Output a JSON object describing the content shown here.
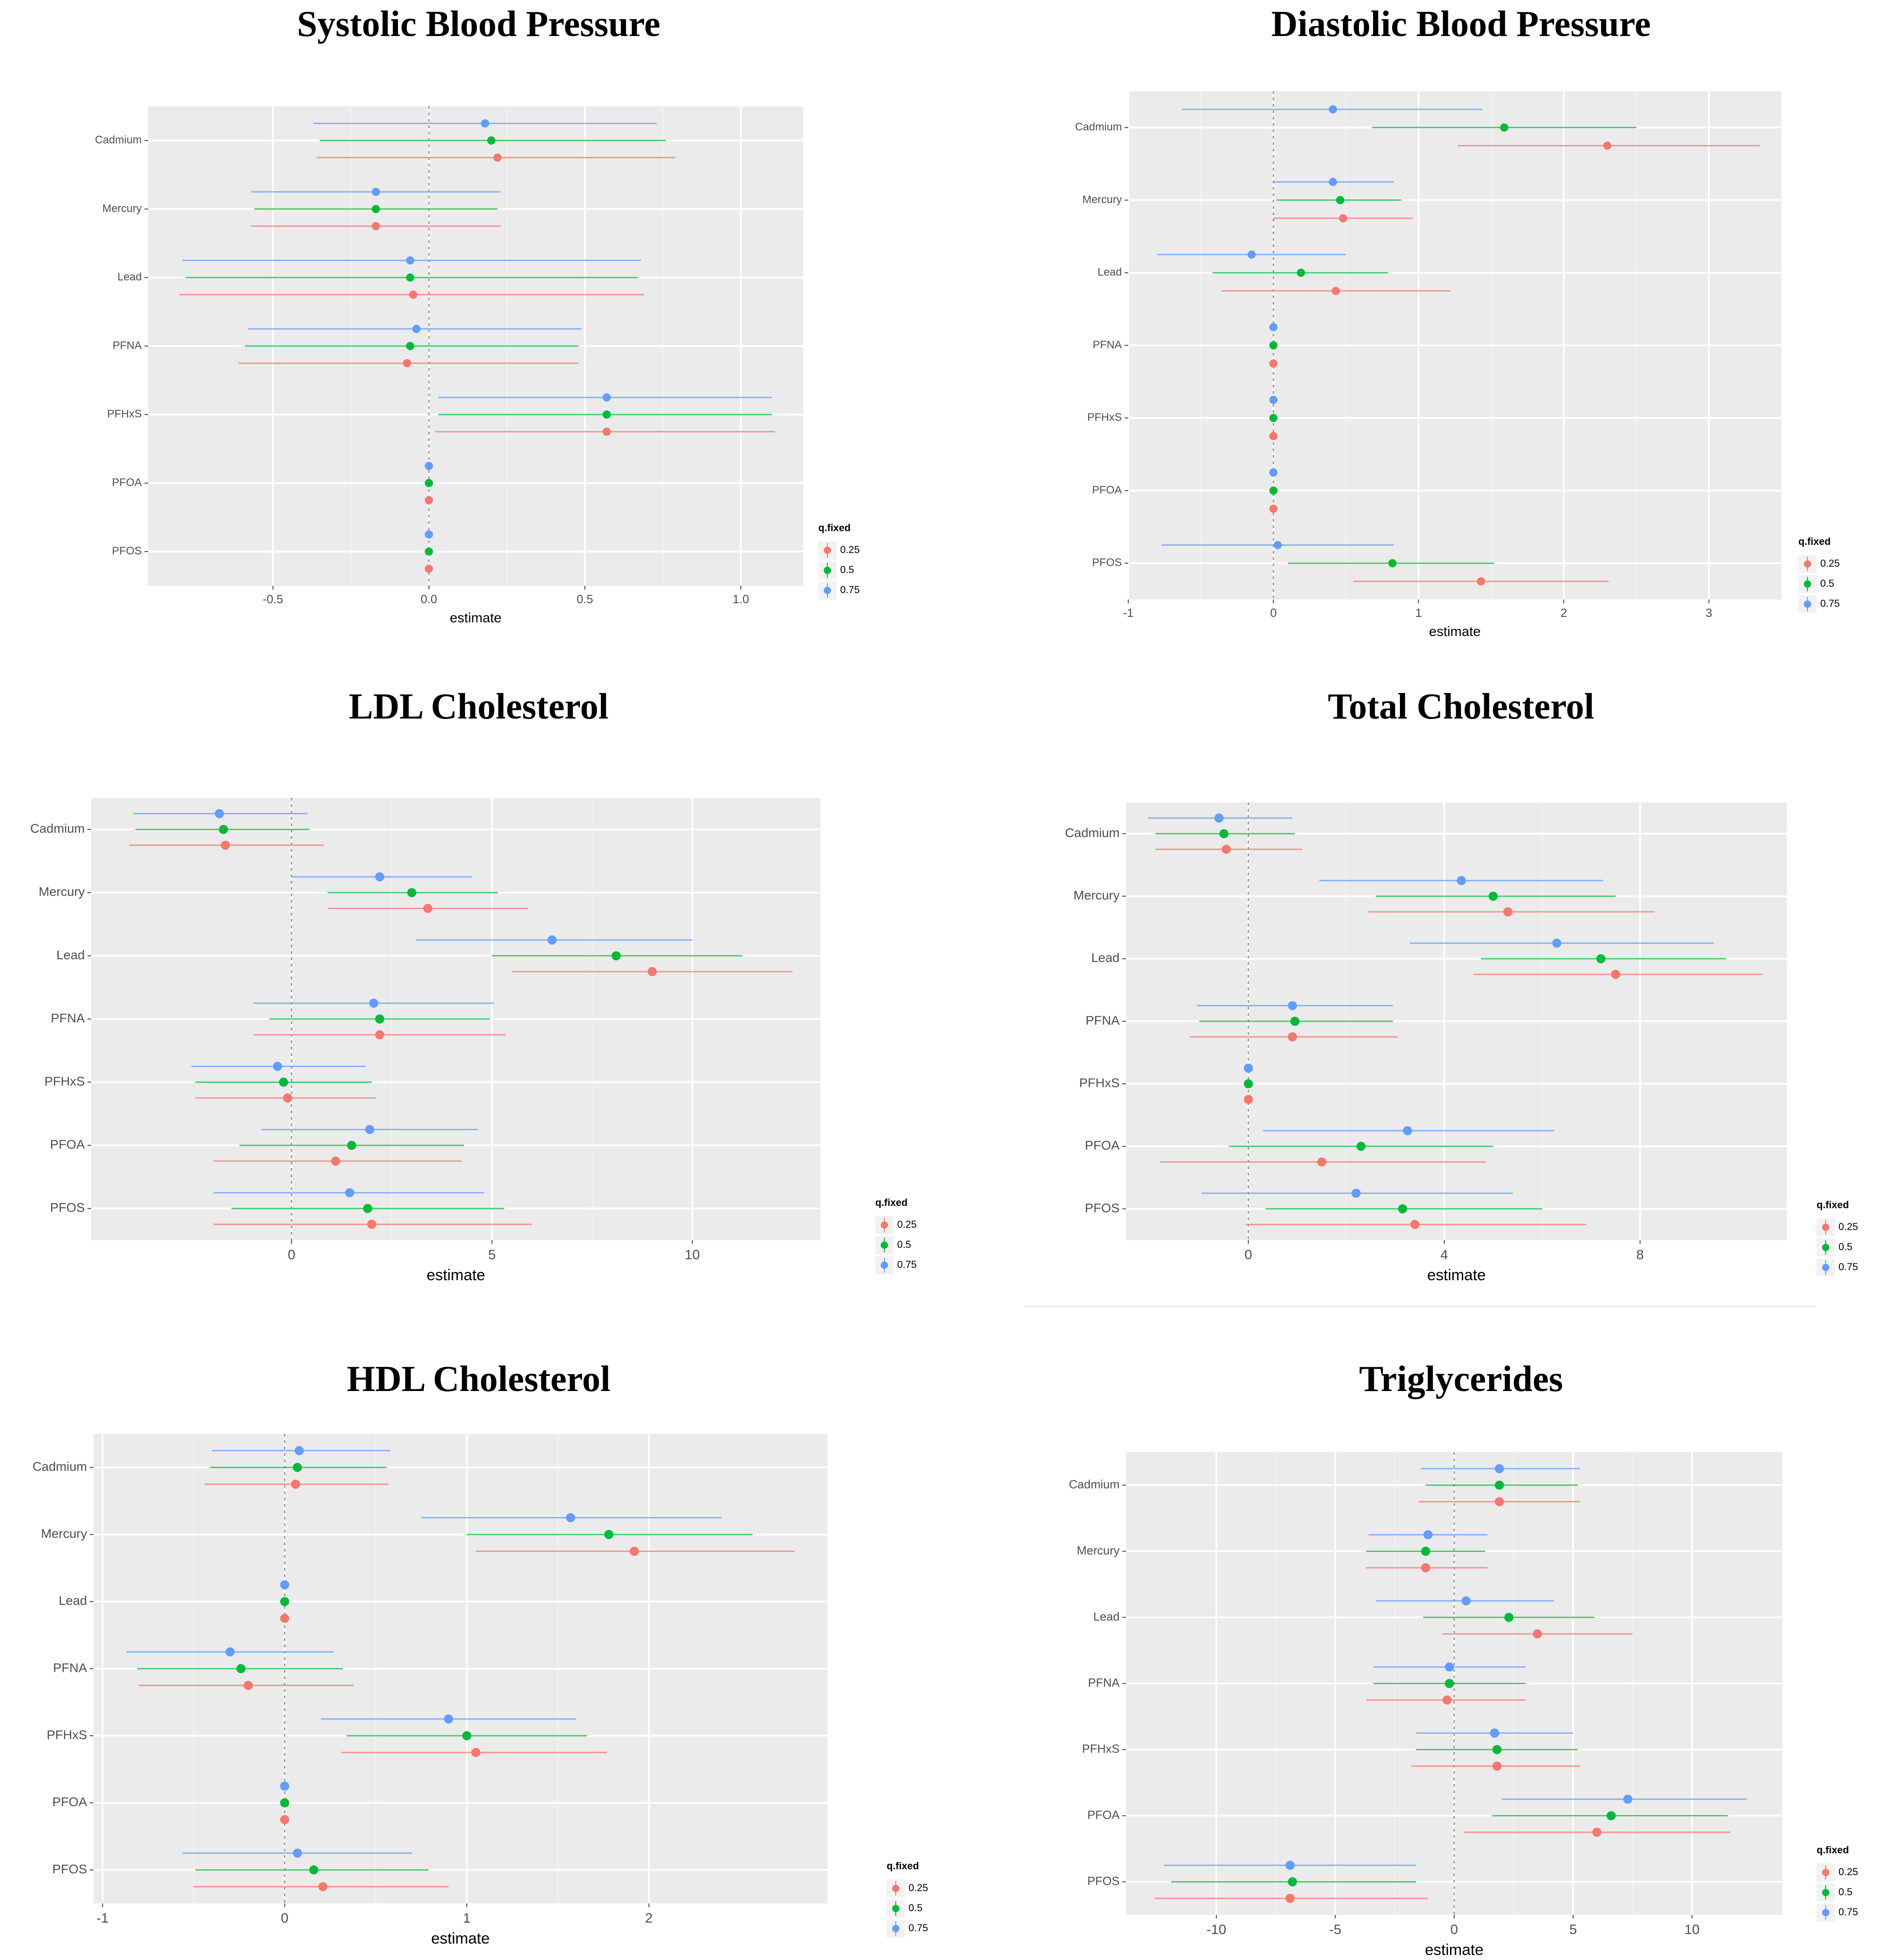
{
  "chart_data": [
    {
      "type": "forest",
      "title": "Systolic Blood Pressure",
      "xlabel": "estimate",
      "ylabel": "",
      "categories": [
        "Cadmium",
        "Mercury",
        "Lead",
        "PFNA",
        "PFHxS",
        "PFOA",
        "PFOS"
      ],
      "xlim": [
        -0.9,
        1.2
      ],
      "xticks": [
        -0.5,
        0.0,
        0.5,
        1.0
      ],
      "xtick_labels": [
        "-0.5",
        "0.0",
        "0.5",
        "1.0"
      ],
      "legend": {
        "title": "q.fixed",
        "labels": [
          "0.25",
          "0.5",
          "0.75"
        ],
        "position": "right-bottom"
      },
      "grid": true,
      "series": [
        {
          "name": "0.25",
          "color": "#F8766D",
          "est": [
            0.22,
            -0.17,
            -0.05,
            -0.07,
            0.57,
            0.0,
            0.0
          ],
          "lo": [
            -0.36,
            -0.57,
            -0.8,
            -0.61,
            0.02,
            0.0,
            0.0
          ],
          "hi": [
            0.79,
            0.23,
            0.69,
            0.48,
            1.11,
            0.0,
            0.0
          ]
        },
        {
          "name": "0.5",
          "color": "#00BA38",
          "est": [
            0.2,
            -0.17,
            -0.06,
            -0.06,
            0.57,
            0.0,
            0.0
          ],
          "lo": [
            -0.35,
            -0.56,
            -0.78,
            -0.59,
            0.03,
            0.0,
            0.0
          ],
          "hi": [
            0.76,
            0.22,
            0.67,
            0.48,
            1.1,
            0.0,
            0.0
          ]
        },
        {
          "name": "0.75",
          "color": "#619CFF",
          "est": [
            0.18,
            -0.17,
            -0.06,
            -0.04,
            0.57,
            0.0,
            0.0
          ],
          "lo": [
            -0.37,
            -0.57,
            -0.79,
            -0.58,
            0.03,
            0.0,
            0.0
          ],
          "hi": [
            0.73,
            0.23,
            0.68,
            0.49,
            1.1,
            0.0,
            0.0
          ]
        }
      ]
    },
    {
      "type": "forest",
      "title": "Diastolic Blood Pressure",
      "xlabel": "estimate",
      "ylabel": "",
      "categories": [
        "Cadmium",
        "Mercury",
        "Lead",
        "PFNA",
        "PFHxS",
        "PFOA",
        "PFOS"
      ],
      "xlim": [
        -1.0,
        3.5
      ],
      "xticks": [
        -1,
        0,
        1,
        2,
        3
      ],
      "xtick_labels": [
        "-1",
        "0",
        "1",
        "2",
        "3"
      ],
      "legend": {
        "title": "q.fixed",
        "labels": [
          "0.25",
          "0.5",
          "0.75"
        ],
        "position": "right-bottom"
      },
      "grid": true,
      "series": [
        {
          "name": "0.25",
          "color": "#F8766D",
          "est": [
            2.3,
            0.48,
            0.43,
            0.0,
            0.0,
            0.0,
            1.43
          ],
          "lo": [
            1.27,
            0.0,
            -0.36,
            0.0,
            0.0,
            0.0,
            0.55
          ],
          "hi": [
            3.35,
            0.96,
            1.22,
            0.0,
            0.0,
            0.0,
            2.31
          ]
        },
        {
          "name": "0.5",
          "color": "#00BA38",
          "est": [
            1.59,
            0.46,
            0.19,
            0.0,
            0.0,
            0.0,
            0.82
          ],
          "lo": [
            0.68,
            0.02,
            -0.42,
            0.0,
            0.0,
            0.0,
            0.1
          ],
          "hi": [
            2.5,
            0.88,
            0.79,
            0.0,
            0.0,
            0.0,
            1.52
          ]
        },
        {
          "name": "0.75",
          "color": "#619CFF",
          "est": [
            0.41,
            0.41,
            -0.15,
            0.0,
            0.0,
            0.0,
            0.03
          ],
          "lo": [
            -0.63,
            0.0,
            -0.8,
            0.0,
            0.0,
            0.0,
            -0.77
          ],
          "hi": [
            1.44,
            0.83,
            0.5,
            0.0,
            0.0,
            0.0,
            0.83
          ]
        }
      ]
    },
    {
      "type": "forest",
      "title": "LDL Cholesterol",
      "xlabel": "estimate",
      "ylabel": "",
      "categories": [
        "Cadmium",
        "Mercury",
        "Lead",
        "PFNA",
        "PFHxS",
        "PFOA",
        "PFOS"
      ],
      "xlim": [
        -5.0,
        13.2
      ],
      "xticks": [
        0,
        5,
        10
      ],
      "xtick_labels": [
        "0",
        "5",
        "10"
      ],
      "legend": {
        "title": "q.fixed",
        "labels": [
          "0.25",
          "0.5",
          "0.75"
        ],
        "position": "right-bottom"
      },
      "grid": true,
      "series": [
        {
          "name": "0.25",
          "color": "#F8766D",
          "est": [
            -1.65,
            3.4,
            9.0,
            2.2,
            -0.1,
            1.1,
            2.0
          ],
          "lo": [
            -4.05,
            0.9,
            5.5,
            -0.95,
            -2.4,
            -1.95,
            -1.95
          ],
          "hi": [
            0.8,
            5.9,
            12.5,
            5.35,
            2.1,
            4.25,
            6.0
          ]
        },
        {
          "name": "0.5",
          "color": "#00BA38",
          "est": [
            -1.7,
            3.0,
            8.1,
            2.2,
            -0.2,
            1.5,
            1.9
          ],
          "lo": [
            -3.9,
            0.9,
            5.0,
            -0.55,
            -2.4,
            -1.3,
            -1.5
          ],
          "hi": [
            0.45,
            5.15,
            11.25,
            4.95,
            2.0,
            4.3,
            5.3
          ]
        },
        {
          "name": "0.75",
          "color": "#619CFF",
          "est": [
            -1.8,
            2.2,
            6.5,
            2.05,
            -0.35,
            1.95,
            1.45
          ],
          "lo": [
            -3.95,
            0.0,
            3.1,
            -0.95,
            -2.5,
            -0.75,
            -1.95
          ],
          "hi": [
            0.4,
            4.5,
            10.0,
            5.05,
            1.85,
            4.65,
            4.8
          ]
        }
      ]
    },
    {
      "type": "forest",
      "title": "Total Cholesterol",
      "xlabel": "estimate",
      "ylabel": "",
      "categories": [
        "Cadmium",
        "Mercury",
        "Lead",
        "PFNA",
        "PFHxS",
        "PFOA",
        "PFOS"
      ],
      "xlim": [
        -2.5,
        11.0
      ],
      "xticks": [
        0,
        4,
        8
      ],
      "xtick_labels": [
        "0",
        "4",
        "8"
      ],
      "legend": {
        "title": "q.fixed",
        "labels": [
          "0.25",
          "0.5",
          "0.75"
        ],
        "position": "right-bottom"
      },
      "grid": true,
      "series": [
        {
          "name": "0.25",
          "color": "#F8766D",
          "est": [
            -0.45,
            5.3,
            7.5,
            0.9,
            0.0,
            1.5,
            3.4
          ],
          "lo": [
            -1.9,
            2.45,
            4.6,
            -1.2,
            0.0,
            -1.8,
            -0.05
          ],
          "hi": [
            1.1,
            8.3,
            10.5,
            3.05,
            0.0,
            4.85,
            6.9
          ]
        },
        {
          "name": "0.5",
          "color": "#00BA38",
          "est": [
            -0.5,
            5.0,
            7.2,
            0.95,
            0.0,
            2.3,
            3.15
          ],
          "lo": [
            -1.9,
            2.6,
            4.75,
            -1.0,
            0.0,
            -0.4,
            0.35
          ],
          "hi": [
            0.95,
            7.5,
            9.75,
            2.95,
            0.0,
            5.0,
            6.0
          ]
        },
        {
          "name": "0.75",
          "color": "#619CFF",
          "est": [
            -0.6,
            4.35,
            6.3,
            0.9,
            0.0,
            3.25,
            2.2
          ],
          "lo": [
            -2.05,
            1.45,
            3.3,
            -1.05,
            0.0,
            0.3,
            -0.95
          ],
          "hi": [
            0.9,
            7.25,
            9.5,
            2.95,
            0.0,
            6.25,
            5.4
          ]
        }
      ]
    },
    {
      "type": "forest",
      "title": "HDL Cholesterol",
      "xlabel": "estimate",
      "ylabel": "",
      "categories": [
        "Cadmium",
        "Mercury",
        "Lead",
        "PFNA",
        "PFHxS",
        "PFOA",
        "PFOS"
      ],
      "xlim": [
        -1.05,
        2.98
      ],
      "xticks": [
        -1,
        0,
        1,
        2
      ],
      "xtick_labels": [
        "-1",
        "0",
        "1",
        "2"
      ],
      "legend": {
        "title": "q.fixed",
        "labels": [
          "0.25",
          "0.5",
          "0.75"
        ],
        "position": "right-bottom"
      },
      "grid": true,
      "series": [
        {
          "name": "0.25",
          "color": "#F8766D",
          "est": [
            0.06,
            1.92,
            0.0,
            -0.2,
            1.05,
            0.0,
            0.21
          ],
          "lo": [
            -0.44,
            1.05,
            0.0,
            -0.8,
            0.31,
            0.0,
            -0.5
          ],
          "hi": [
            0.57,
            2.8,
            0.0,
            0.38,
            1.77,
            0.0,
            0.9
          ]
        },
        {
          "name": "0.5",
          "color": "#00BA38",
          "est": [
            0.07,
            1.78,
            0.0,
            -0.24,
            1.0,
            0.0,
            0.16
          ],
          "lo": [
            -0.41,
            1.0,
            0.0,
            -0.81,
            0.34,
            0.0,
            -0.49
          ],
          "hi": [
            0.56,
            2.57,
            0.0,
            0.32,
            1.66,
            0.0,
            0.79
          ]
        },
        {
          "name": "0.75",
          "color": "#619CFF",
          "est": [
            0.08,
            1.57,
            0.0,
            -0.3,
            0.9,
            0.0,
            0.07
          ],
          "lo": [
            -0.4,
            0.75,
            0.0,
            -0.87,
            0.2,
            0.0,
            -0.56
          ],
          "hi": [
            0.58,
            2.4,
            0.0,
            0.27,
            1.6,
            0.0,
            0.7
          ]
        }
      ]
    },
    {
      "type": "forest",
      "title": "Triglycerides",
      "xlabel": "estimate",
      "ylabel": "",
      "categories": [
        "Cadmium",
        "Mercury",
        "Lead",
        "PFNA",
        "PFHxS",
        "PFOA",
        "PFOS"
      ],
      "xlim": [
        -13.8,
        13.8
      ],
      "xticks": [
        -10,
        -5,
        0,
        5,
        10
      ],
      "xtick_labels": [
        "-10",
        "-5",
        "0",
        "5",
        "10"
      ],
      "legend": {
        "title": "q.fixed",
        "labels": [
          "0.25",
          "0.5",
          "0.75"
        ],
        "position": "right-bottom"
      },
      "grid": true,
      "series": [
        {
          "name": "0.25",
          "color": "#F8766D",
          "est": [
            1.9,
            -1.2,
            3.5,
            -0.3,
            1.8,
            6.0,
            -6.9
          ],
          "lo": [
            -1.5,
            -3.7,
            -0.5,
            -3.7,
            -1.8,
            0.4,
            -12.6
          ],
          "hi": [
            5.3,
            1.4,
            7.5,
            3.0,
            5.3,
            11.6,
            -1.1
          ]
        },
        {
          "name": "0.5",
          "color": "#00BA38",
          "est": [
            1.9,
            -1.2,
            2.3,
            -0.2,
            1.8,
            6.6,
            -6.8
          ],
          "lo": [
            -1.2,
            -3.7,
            -1.3,
            -3.4,
            -1.6,
            1.6,
            -11.9
          ],
          "hi": [
            5.2,
            1.3,
            5.9,
            3.0,
            5.2,
            11.5,
            -1.6
          ]
        },
        {
          "name": "0.75",
          "color": "#619CFF",
          "est": [
            1.9,
            -1.1,
            0.5,
            -0.2,
            1.7,
            7.3,
            -6.9
          ],
          "lo": [
            -1.4,
            -3.6,
            -3.3,
            -3.4,
            -1.6,
            2.0,
            -12.2
          ],
          "hi": [
            5.3,
            1.4,
            4.2,
            3.0,
            5.0,
            12.3,
            -1.6
          ]
        }
      ]
    }
  ]
}
